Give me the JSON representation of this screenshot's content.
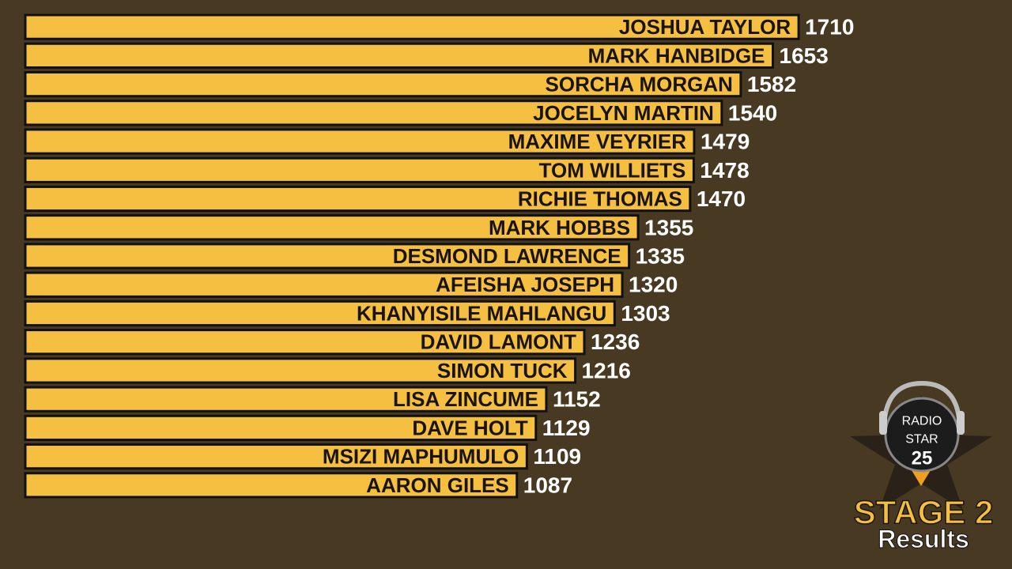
{
  "chart_data": {
    "type": "barh",
    "title": "STAGE 2",
    "subtitle": "Results",
    "annotations": [
      "RADIO",
      "STAR",
      "25"
    ],
    "categories": [
      "JOSHUA TAYLOR",
      "MARK HANBIDGE",
      "SORCHA MORGAN",
      "JOCELYN MARTIN",
      "MAXIME VEYRIER",
      "TOM WILLIETS",
      "RICHIE THOMAS",
      "MARK HOBBS",
      "DESMOND LAWRENCE",
      "AFEISHA JOSEPH",
      "KHANYISILE MAHLANGU",
      "DAVID LAMONT",
      "SIMON TUCK",
      "LISA ZINCUME",
      "DAVE HOLT",
      "MSIZI MAPHUMULO",
      "AARON GILES"
    ],
    "values": [
      1710,
      1653,
      1582,
      1540,
      1479,
      1478,
      1470,
      1355,
      1335,
      1320,
      1303,
      1236,
      1216,
      1152,
      1129,
      1109,
      1087
    ],
    "color": "#f5bf42",
    "xlim": [
      0,
      1750
    ]
  }
}
